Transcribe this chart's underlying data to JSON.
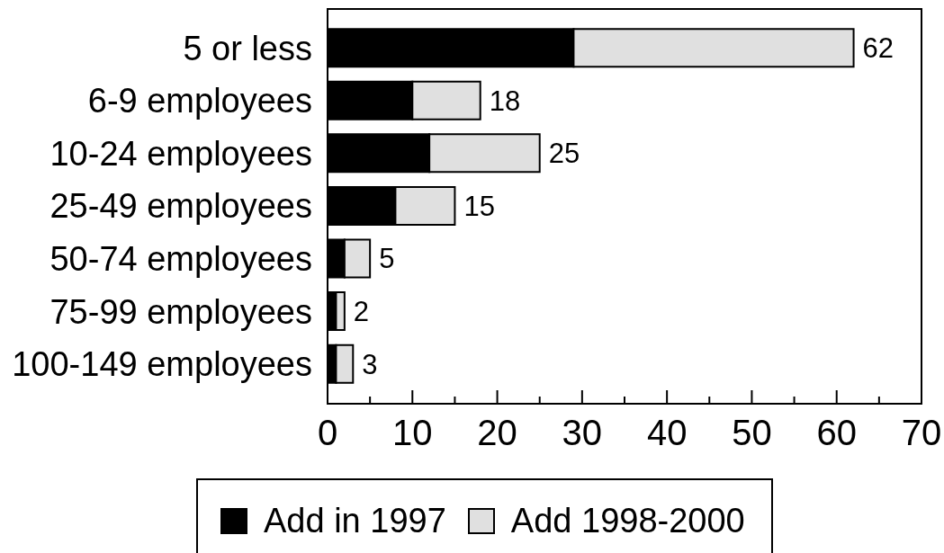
{
  "chart_data": {
    "type": "bar",
    "orientation": "horizontal",
    "stacked": true,
    "categories": [
      "5 or less",
      "6-9 employees",
      "10-24 employees",
      "25-49 employees",
      "50-74 employees",
      "75-99 employees",
      "100-149 employees"
    ],
    "series": [
      {
        "name": "Add in 1997",
        "color": "#000000",
        "values": [
          29,
          10,
          12,
          8,
          2,
          1,
          1
        ]
      },
      {
        "name": "Add 1998-2000",
        "color": "#e0e0e0",
        "values": [
          33,
          8,
          13,
          7,
          3,
          1,
          2
        ]
      }
    ],
    "totals": [
      "62",
      "18",
      "25",
      "15",
      "5",
      "2",
      "3"
    ],
    "xlim": [
      0,
      70
    ],
    "xticks": [
      0,
      {
        "value": 5,
        "label": null
      },
      10,
      {
        "value": 15,
        "label": null
      },
      20,
      {
        "value": 25,
        "label": null
      },
      30,
      {
        "value": 35,
        "label": null
      },
      40,
      {
        "value": 45,
        "label": null
      },
      50,
      {
        "value": 55,
        "label": null
      },
      60,
      {
        "value": 65,
        "label": null
      },
      70
    ],
    "legend": "bottom"
  }
}
